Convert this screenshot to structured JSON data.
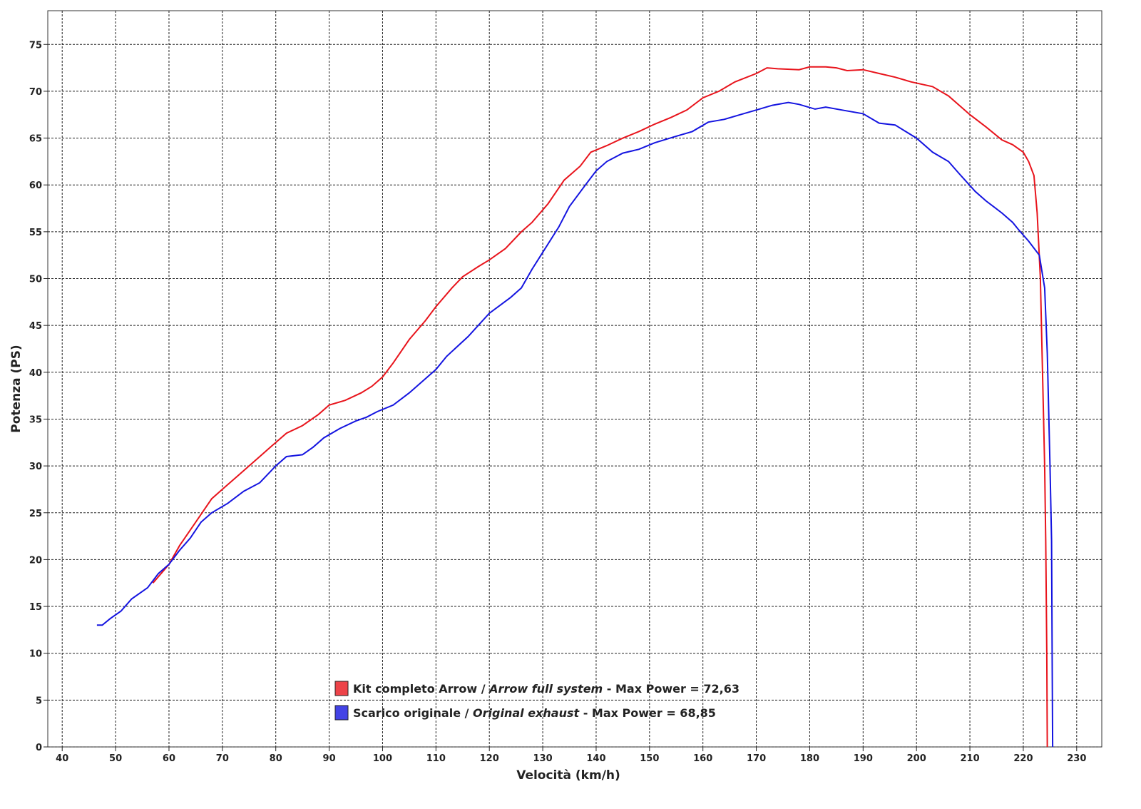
{
  "chart_data": {
    "type": "line",
    "x_label": "Velocità (km/h)",
    "y_label": "Potenza (PS)",
    "xlim": [
      37.3,
      234.7
    ],
    "ylim": [
      0,
      78.6
    ],
    "xticks": [
      40,
      50,
      60,
      70,
      80,
      90,
      100,
      110,
      120,
      130,
      140,
      150,
      160,
      170,
      180,
      190,
      200,
      210,
      220,
      230
    ],
    "yticks": [
      0,
      5,
      10,
      15,
      20,
      25,
      30,
      35,
      40,
      45,
      50,
      55,
      60,
      65,
      70,
      75
    ],
    "grid": true,
    "legend": "bottom-center",
    "series": [
      {
        "name": "Kit completo Arrow / Arrow full system - Max Power = 72,63",
        "name_italic": "Arrow full system",
        "color": "#e8141c",
        "x": [
          57,
          60,
          62,
          65,
          68,
          70,
          73,
          76,
          79,
          82,
          85,
          88,
          90,
          93,
          96,
          98,
          100,
          102,
          105,
          108,
          110,
          113,
          115,
          118,
          120,
          123,
          126,
          128,
          131,
          134,
          137,
          139,
          142,
          145,
          148,
          151,
          154,
          157,
          160,
          163,
          166,
          170,
          172,
          174,
          178,
          180,
          183,
          185,
          187,
          190,
          193,
          196,
          199,
          203,
          206,
          210,
          213,
          216,
          218,
          220,
          221,
          222,
          222.6,
          223.2,
          223.6,
          224,
          224.2,
          224.4,
          224.5
        ],
        "values": [
          17.5,
          19.5,
          21.5,
          24,
          26.5,
          27.5,
          29,
          30.5,
          32,
          33.5,
          34.3,
          35.5,
          36.5,
          37,
          37.8,
          38.5,
          39.5,
          41,
          43.5,
          45.5,
          47,
          49,
          50.2,
          51.3,
          52,
          53.2,
          55,
          56,
          58,
          60.5,
          62,
          63.5,
          64.2,
          65,
          65.7,
          66.5,
          67.2,
          68,
          69.3,
          70,
          71,
          71.9,
          72.5,
          72.4,
          72.3,
          72.6,
          72.6,
          72.5,
          72.2,
          72.3,
          71.9,
          71.5,
          71,
          70.5,
          69.5,
          67.5,
          66.2,
          64.8,
          64.3,
          63.5,
          62.5,
          61,
          57,
          50,
          40,
          30,
          22,
          10,
          0
        ]
      },
      {
        "name": "Scarico originale / Original exhaust - Max Power = 68,85",
        "name_italic": "Original exhaust",
        "color": "#1414e0",
        "x": [
          46.5,
          47.5,
          49,
          51,
          53,
          56,
          58,
          60,
          62,
          64,
          66,
          68,
          71,
          74,
          77,
          80,
          82,
          85,
          87,
          89,
          92,
          95,
          97,
          99,
          102,
          105,
          108,
          110,
          112,
          116,
          120,
          124,
          126,
          128,
          130,
          133,
          135,
          138,
          140,
          142,
          145,
          148,
          151,
          155,
          158,
          161,
          164,
          167,
          170,
          173,
          176,
          178,
          181,
          183,
          186,
          190,
          193,
          196,
          200,
          203,
          206,
          208,
          211,
          213,
          216,
          218,
          219,
          221,
          223,
          224,
          224.5,
          225,
          225.3,
          225.4,
          225.5
        ],
        "values": [
          13,
          13,
          13.7,
          14.5,
          15.8,
          17,
          18.5,
          19.5,
          21,
          22.3,
          24,
          25,
          26,
          27.3,
          28.2,
          30,
          31,
          31.2,
          32,
          33,
          34,
          34.8,
          35.2,
          35.8,
          36.5,
          37.8,
          39.3,
          40.3,
          41.7,
          43.8,
          46.3,
          48,
          49,
          51,
          52.8,
          55.5,
          57.7,
          60,
          61.5,
          62.5,
          63.4,
          63.8,
          64.5,
          65.2,
          65.7,
          66.7,
          67,
          67.5,
          68,
          68.5,
          68.8,
          68.6,
          68.1,
          68.3,
          68,
          67.6,
          66.6,
          66.4,
          65,
          63.5,
          62.5,
          61.2,
          59.3,
          58.3,
          57,
          56,
          55.3,
          54,
          52.5,
          49,
          42,
          30,
          22,
          10,
          0
        ]
      }
    ]
  }
}
